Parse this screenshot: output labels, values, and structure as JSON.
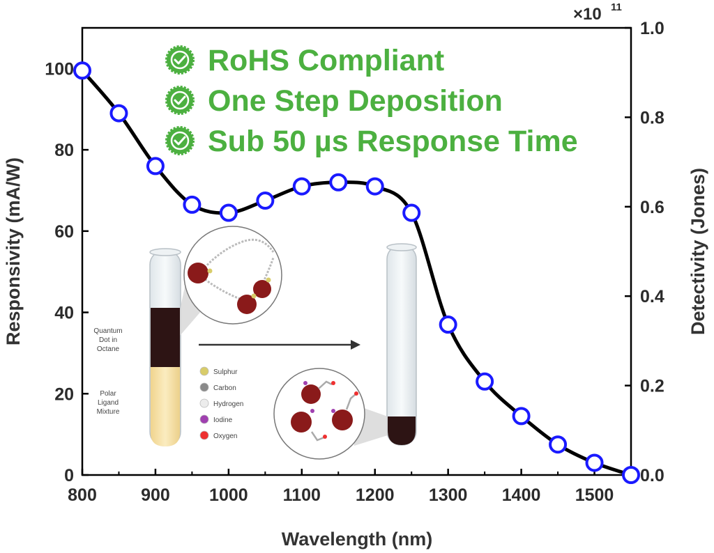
{
  "chart_data": {
    "type": "line",
    "xlabel": "Wavelength (nm)",
    "ylabel": "Responsivity (mA/W)",
    "y2label": "Detectivity (Jones)",
    "y2_multiplier": "×10",
    "y2_exponent": "11",
    "xlim": [
      800,
      1550
    ],
    "ylim": [
      0,
      110
    ],
    "y2lim": [
      0,
      1.0
    ],
    "x_ticks": [
      "800",
      "900",
      "1000",
      "1100",
      "1200",
      "1300",
      "1400",
      "1500"
    ],
    "y_ticks": [
      "0",
      "20",
      "40",
      "60",
      "80",
      "100"
    ],
    "y2_ticks": [
      "0.0",
      "0.2",
      "0.4",
      "0.6",
      "0.8",
      "1.0"
    ],
    "series": [
      {
        "x": [
          800,
          850,
          900,
          950,
          1000,
          1050,
          1100,
          1150,
          1200,
          1250,
          1300,
          1350,
          1400,
          1450,
          1500,
          1550
        ],
        "y": [
          99.5,
          89,
          76,
          66.5,
          64.5,
          67.5,
          71,
          72,
          71,
          64.5,
          37,
          23,
          14.5,
          7.5,
          3,
          0
        ]
      }
    ],
    "line_color": "#000000",
    "marker_color": "#1a1aff"
  },
  "features": {
    "color": "#4cb040",
    "items": [
      {
        "text": "RoHS Compliant"
      },
      {
        "text": "One Step Deposition"
      },
      {
        "text": "Sub 50 µs Response Time"
      }
    ]
  },
  "inset": {
    "tube_left_label1": [
      "Quantum",
      "Dot in",
      "Octane"
    ],
    "tube_left_label2": [
      "Polar",
      "Ligand",
      "Mixture"
    ],
    "legend": [
      {
        "label": "Sulphur",
        "color": "#d8cc6a"
      },
      {
        "label": "Carbon",
        "color": "#8a8a8a"
      },
      {
        "label": "Hydrogen",
        "color": "#ececec"
      },
      {
        "label": "Iodine",
        "color": "#a040b0"
      },
      {
        "label": "Oxygen",
        "color": "#ee3030"
      }
    ]
  }
}
